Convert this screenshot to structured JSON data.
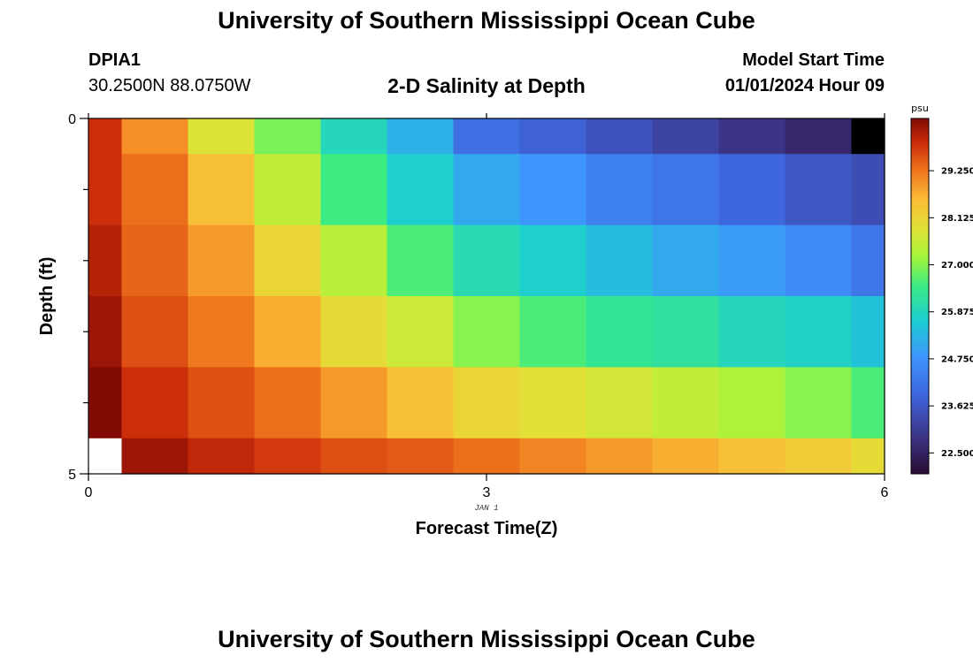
{
  "header": {
    "title": "University of Southern Mississippi Ocean Cube",
    "station": "DPIA1",
    "coords": "30.2500N  88.0750W",
    "subtitle": "2-D Salinity at Depth",
    "start_label": "Model Start Time",
    "start_value": "01/01/2024 Hour 09"
  },
  "footer": {
    "title": "University of Southern Mississippi Ocean Cube"
  },
  "chart_data": {
    "type": "heatmap",
    "title": "2-D Salinity at Depth",
    "xlabel": "Forecast Time(Z)",
    "ylabel": "Depth (ft)",
    "x_ticks": [
      "0",
      "3",
      "6"
    ],
    "y_ticks": [
      "0",
      "5"
    ],
    "x_date_label": "JAN 1",
    "xlim": [
      0,
      6
    ],
    "ylim": [
      0,
      5
    ],
    "x_edges": [
      0,
      0.25,
      0.75,
      1.25,
      1.75,
      2.25,
      2.75,
      3.25,
      3.75,
      4.25,
      4.75,
      5.25,
      5.75,
      6
    ],
    "y_edges": [
      0,
      0.5,
      1.5,
      2.5,
      3.5,
      4.5,
      5
    ],
    "values": [
      [
        29.9,
        29.0,
        27.8,
        26.9,
        25.9,
        25.2,
        24.1,
        23.8,
        23.5,
        23.2,
        22.9,
        22.6,
        null
      ],
      [
        29.9,
        29.3,
        28.5,
        27.5,
        26.5,
        25.7,
        25.1,
        24.8,
        24.4,
        24.2,
        23.9,
        23.6,
        23.4
      ],
      [
        30.1,
        29.4,
        28.9,
        28.1,
        27.4,
        26.6,
        26.0,
        25.7,
        25.4,
        25.1,
        24.9,
        24.6,
        24.2
      ],
      [
        30.3,
        29.6,
        29.2,
        28.7,
        28.0,
        27.6,
        27.0,
        26.6,
        26.3,
        26.2,
        25.9,
        25.8,
        25.5
      ],
      [
        30.5,
        29.9,
        29.6,
        29.3,
        28.9,
        28.5,
        28.1,
        27.9,
        27.7,
        27.5,
        27.3,
        27.0,
        26.6
      ],
      [
        null,
        30.3,
        30.0,
        29.8,
        29.6,
        29.5,
        29.3,
        29.1,
        28.9,
        28.7,
        28.5,
        28.3,
        28.0
      ]
    ],
    "no_data_colors": {
      "top-right": "#000000",
      "bottom-left": "#ffffff"
    },
    "colorbar": {
      "unit": "psu",
      "min": 22.0,
      "max": 30.5,
      "ticks": [
        "22.500",
        "23.625",
        "24.750",
        "25.875",
        "27.000",
        "28.125",
        "29.250"
      ]
    },
    "grid": false
  }
}
